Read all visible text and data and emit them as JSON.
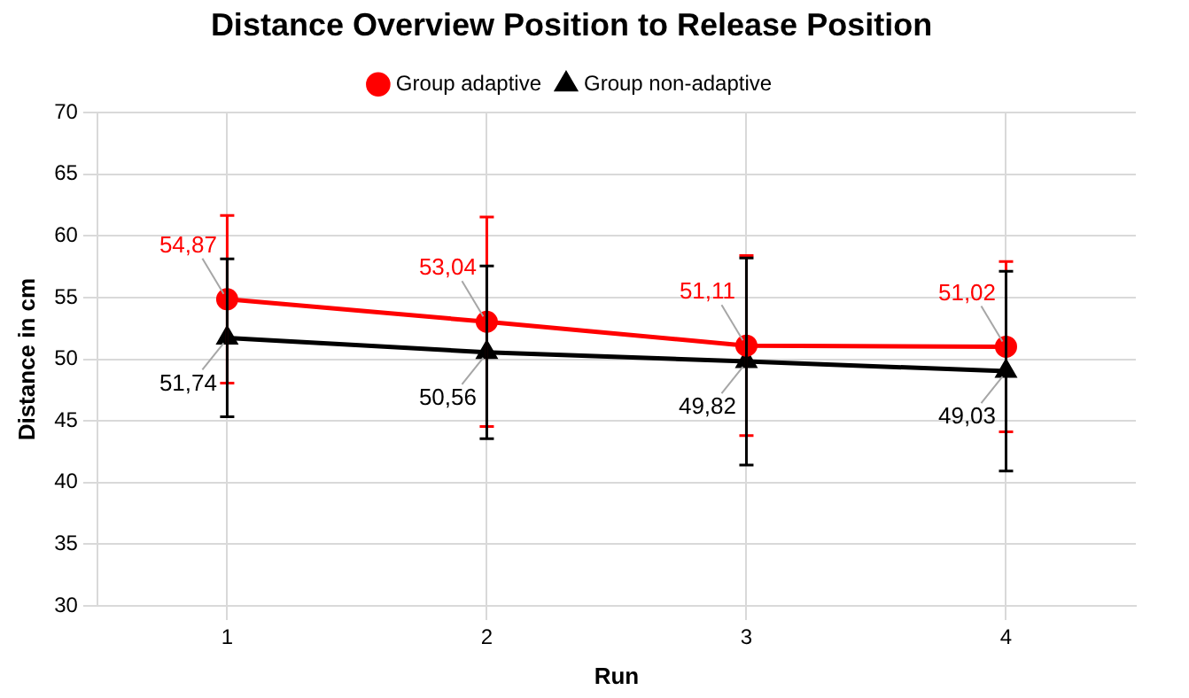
{
  "chart_data": {
    "type": "line",
    "title": "Distance Overview Position to Release Position",
    "xlabel": "Run",
    "ylabel": "Distance in cm",
    "categories": [
      "1",
      "2",
      "3",
      "4"
    ],
    "series": [
      {
        "name": "Group adaptive",
        "color": "#ff0000",
        "marker": "circle",
        "values": [
          54.87,
          53.04,
          51.11,
          51.02
        ],
        "value_labels": [
          "54,87",
          "53,04",
          "51,11",
          "51,02"
        ],
        "errors": [
          6.8,
          8.5,
          7.3,
          6.9
        ]
      },
      {
        "name": "Group non-adaptive",
        "color": "#000000",
        "marker": "triangle",
        "values": [
          51.74,
          50.56,
          49.82,
          49.03
        ],
        "value_labels": [
          "51,74",
          "50,56",
          "49,82",
          "49,03"
        ],
        "errors": [
          6.4,
          7.0,
          8.4,
          8.1
        ]
      }
    ],
    "ylim": [
      30,
      70
    ],
    "yticks": [
      30,
      35,
      40,
      45,
      50,
      55,
      60,
      65,
      70
    ],
    "grid": true,
    "legend": "top",
    "line_style": "solid"
  }
}
